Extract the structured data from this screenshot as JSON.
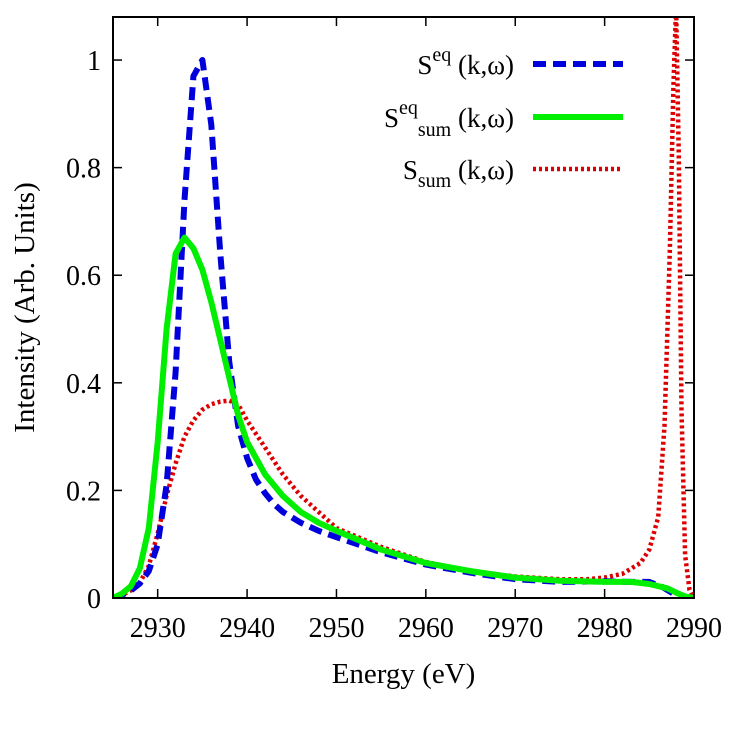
{
  "chart_data": {
    "type": "line",
    "title": "",
    "xlabel": "Energy (eV)",
    "ylabel": "Intensity (Arb. Units)",
    "xlim": [
      2925,
      2990
    ],
    "ylim": [
      0,
      1.08
    ],
    "xticks": [
      2930,
      2940,
      2950,
      2960,
      2970,
      2980,
      2990
    ],
    "yticks": [
      0,
      0.2,
      0.4,
      0.6,
      0.8,
      1
    ],
    "ytick_labels": [
      "0",
      "0.2",
      "0.4",
      "0.6",
      "0.8",
      "1"
    ],
    "grid": false,
    "legend_position": "top-right",
    "series": [
      {
        "name": "S",
        "sup": "eq",
        "sub": "",
        "suffix": " (k,ω)",
        "color": "#0000dd",
        "dash": "dashed",
        "x": [
          2925,
          2926,
          2927,
          2928,
          2929,
          2930,
          2931,
          2932,
          2933,
          2934,
          2935,
          2936,
          2937,
          2938,
          2939,
          2940,
          2941,
          2942,
          2943,
          2944,
          2946,
          2948,
          2950,
          2955,
          2960,
          2965,
          2970,
          2975,
          2980,
          2983,
          2985,
          2986.5,
          2988,
          2989,
          2990
        ],
        "y": [
          0.0,
          0.006,
          0.014,
          0.027,
          0.05,
          0.1,
          0.21,
          0.42,
          0.74,
          0.97,
          1.0,
          0.88,
          0.64,
          0.44,
          0.32,
          0.26,
          0.22,
          0.195,
          0.175,
          0.16,
          0.14,
          0.125,
          0.113,
          0.085,
          0.062,
          0.047,
          0.035,
          0.03,
          0.031,
          0.03,
          0.03,
          0.02,
          0.005,
          0.002,
          0.0
        ]
      },
      {
        "name": "S",
        "sup": "eq",
        "sub": "sum",
        "suffix": " (k,ω)",
        "color": "#00ee00",
        "dash": "solid",
        "x": [
          2925,
          2926,
          2927,
          2928,
          2929,
          2930,
          2931,
          2932,
          2933,
          2934,
          2935,
          2936,
          2937,
          2938,
          2939,
          2940,
          2942,
          2944,
          2946,
          2948,
          2950,
          2955,
          2960,
          2965,
          2970,
          2975,
          2980,
          2983,
          2985,
          2987,
          2988,
          2989,
          2990
        ],
        "y": [
          0.0,
          0.008,
          0.022,
          0.055,
          0.13,
          0.29,
          0.5,
          0.64,
          0.67,
          0.65,
          0.61,
          0.55,
          0.48,
          0.41,
          0.34,
          0.29,
          0.23,
          0.19,
          0.16,
          0.14,
          0.125,
          0.09,
          0.065,
          0.05,
          0.038,
          0.032,
          0.03,
          0.03,
          0.026,
          0.018,
          0.01,
          0.003,
          0.0
        ]
      },
      {
        "name": "S",
        "sup": "",
        "sub": "sum",
        "suffix": " (k,ω)",
        "color": "#dd0000",
        "dash": "dotted",
        "x": [
          2925,
          2926,
          2927,
          2928,
          2929,
          2930,
          2931,
          2932,
          2933,
          2934,
          2935,
          2936,
          2937,
          2938,
          2939,
          2940,
          2942,
          2944,
          2946,
          2948,
          2950,
          2955,
          2960,
          2965,
          2970,
          2975,
          2978,
          2980,
          2982,
          2984,
          2985,
          2986,
          2986.7,
          2987.3,
          2987.7,
          2988,
          2988.3,
          2988.6,
          2989,
          2989.5,
          2990
        ],
        "y": [
          0.0,
          0.006,
          0.014,
          0.028,
          0.06,
          0.12,
          0.19,
          0.25,
          0.3,
          0.33,
          0.35,
          0.36,
          0.365,
          0.367,
          0.36,
          0.33,
          0.28,
          0.23,
          0.19,
          0.16,
          0.13,
          0.095,
          0.067,
          0.05,
          0.04,
          0.035,
          0.035,
          0.038,
          0.045,
          0.065,
          0.09,
          0.15,
          0.32,
          0.65,
          0.95,
          1.1,
          0.82,
          0.35,
          0.08,
          0.015,
          0.0
        ]
      }
    ]
  }
}
